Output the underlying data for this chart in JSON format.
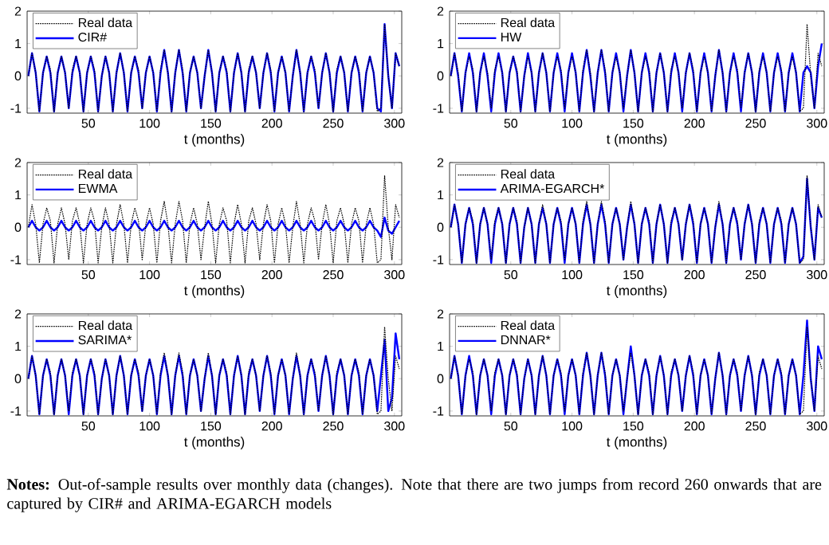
{
  "chart_data": [
    {
      "type": "line",
      "xlabel": "t (months)",
      "xlim": [
        0,
        306
      ],
      "ylim": [
        -1.15,
        2
      ],
      "xticks": [
        50,
        100,
        150,
        200,
        250,
        300
      ],
      "yticks": [
        -1,
        0,
        1,
        2
      ],
      "legend": "top left",
      "x": [
        1,
        4,
        7,
        10,
        13,
        16,
        19,
        22,
        25,
        28,
        31,
        34,
        37,
        40,
        43,
        46,
        49,
        52,
        55,
        58,
        61,
        64,
        67,
        70,
        73,
        76,
        79,
        82,
        85,
        88,
        91,
        94,
        97,
        100,
        103,
        106,
        109,
        112,
        115,
        118,
        121,
        124,
        127,
        130,
        133,
        136,
        139,
        142,
        145,
        148,
        151,
        154,
        157,
        160,
        163,
        166,
        169,
        172,
        175,
        178,
        181,
        184,
        187,
        190,
        193,
        196,
        199,
        202,
        205,
        208,
        211,
        214,
        217,
        220,
        223,
        226,
        229,
        232,
        235,
        238,
        241,
        244,
        247,
        250,
        253,
        256,
        259,
        262,
        265,
        268,
        271,
        274,
        277,
        280,
        283,
        286,
        289,
        292,
        295,
        298,
        301,
        304
      ],
      "series": [
        {
          "name": "Real data",
          "color": "#000000",
          "line_style": "dotted",
          "values": [
            0,
            0.7,
            0.1,
            -1.1,
            0.1,
            0.6,
            0.2,
            -1.1,
            0.1,
            0.6,
            0.1,
            -1.0,
            0.2,
            0.6,
            0.1,
            -1.1,
            0.1,
            0.6,
            0.2,
            -1.1,
            0.0,
            0.6,
            0.1,
            -1.1,
            0.1,
            0.7,
            0.1,
            -1.1,
            0.1,
            0.6,
            0.2,
            -1.0,
            0.1,
            0.6,
            0.1,
            -1.1,
            0.2,
            0.8,
            0.1,
            -1.1,
            0.1,
            0.8,
            0.2,
            -1.1,
            0.1,
            0.6,
            0.1,
            -1.0,
            0.0,
            0.8,
            0.1,
            -1.1,
            0.1,
            0.6,
            0.2,
            -1.1,
            0.1,
            0.7,
            0.1,
            -1.1,
            0.2,
            0.6,
            0.1,
            -1.0,
            0.1,
            0.7,
            0.2,
            -1.1,
            0.1,
            0.6,
            0.1,
            -1.1,
            0.0,
            0.8,
            0.1,
            -1.1,
            0.1,
            0.6,
            0.2,
            -1.0,
            0.1,
            0.7,
            0.1,
            -1.1,
            0.2,
            0.6,
            0.1,
            -1.1,
            0.1,
            0.6,
            0.2,
            -1.1,
            0.1,
            0.6,
            0.1,
            -1.1,
            -1.0,
            1.6,
            0.0,
            -1.0,
            0.7,
            0.3
          ]
        },
        {
          "name": "CIR#",
          "color": "#0000ff",
          "line_style": "solid",
          "values": [
            0,
            0.7,
            0.1,
            -1.1,
            0.1,
            0.6,
            0.1,
            -1.1,
            0.1,
            0.6,
            0.1,
            -1.0,
            0.1,
            0.6,
            0.1,
            -1.1,
            0.1,
            0.6,
            0.1,
            -1.1,
            0.0,
            0.6,
            0.1,
            -1.1,
            0.1,
            0.7,
            0.1,
            -1.1,
            0.1,
            0.6,
            0.1,
            -1.0,
            0.1,
            0.6,
            0.1,
            -1.1,
            0.1,
            0.8,
            0.1,
            -1.1,
            0.1,
            0.8,
            0.1,
            -1.1,
            0.1,
            0.6,
            0.1,
            -1.0,
            0.0,
            0.8,
            0.1,
            -1.1,
            0.1,
            0.6,
            0.1,
            -1.1,
            0.1,
            0.7,
            0.1,
            -1.1,
            0.1,
            0.6,
            0.1,
            -1.0,
            0.1,
            0.7,
            0.1,
            -1.1,
            0.1,
            0.6,
            0.1,
            -1.1,
            0.0,
            0.8,
            0.1,
            -1.1,
            0.1,
            0.6,
            0.1,
            -1.0,
            0.1,
            0.7,
            0.1,
            -1.1,
            0.1,
            0.6,
            0.1,
            -1.1,
            0.1,
            0.6,
            0.1,
            -1.1,
            0.1,
            0.6,
            0.1,
            -1.0,
            -1.1,
            1.6,
            0.0,
            -1.0,
            0.7,
            0.3
          ]
        }
      ],
      "annotations": [
        "**Notes:** Out-of-sample results over monthly data (changes). Note that there are two jumps from record 260 onwards that are captured by CIR# and ARIMA-EGARCH models"
      ]
    },
    {
      "type": "line",
      "xlabel": "t (months)",
      "xlim": [
        0,
        306
      ],
      "ylim": [
        -1.15,
        2
      ],
      "xticks": [
        50,
        100,
        150,
        200,
        250,
        300
      ],
      "yticks": [
        -1,
        0,
        1,
        2
      ],
      "legend": "top left",
      "x": [
        1,
        4,
        7,
        10,
        13,
        16,
        19,
        22,
        25,
        28,
        31,
        34,
        37,
        40,
        43,
        46,
        49,
        52,
        55,
        58,
        61,
        64,
        67,
        70,
        73,
        76,
        79,
        82,
        85,
        88,
        91,
        94,
        97,
        100,
        103,
        106,
        109,
        112,
        115,
        118,
        121,
        124,
        127,
        130,
        133,
        136,
        139,
        142,
        145,
        148,
        151,
        154,
        157,
        160,
        163,
        166,
        169,
        172,
        175,
        178,
        181,
        184,
        187,
        190,
        193,
        196,
        199,
        202,
        205,
        208,
        211,
        214,
        217,
        220,
        223,
        226,
        229,
        232,
        235,
        238,
        241,
        244,
        247,
        250,
        253,
        256,
        259,
        262,
        265,
        268,
        271,
        274,
        277,
        280,
        283,
        286,
        289,
        292,
        295,
        298,
        301,
        304
      ],
      "series": [
        {
          "name": "Real data",
          "color": "#000000",
          "line_style": "dotted",
          "values": [
            0,
            0.7,
            0.1,
            -1.1,
            0.1,
            0.6,
            0.2,
            -1.1,
            0.1,
            0.6,
            0.1,
            -1.0,
            0.2,
            0.6,
            0.1,
            -1.1,
            0.1,
            0.6,
            0.2,
            -1.1,
            0.0,
            0.6,
            0.1,
            -1.1,
            0.1,
            0.7,
            0.1,
            -1.1,
            0.1,
            0.6,
            0.2,
            -1.0,
            0.1,
            0.6,
            0.1,
            -1.1,
            0.2,
            0.8,
            0.1,
            -1.1,
            0.1,
            0.8,
            0.2,
            -1.1,
            0.1,
            0.6,
            0.1,
            -1.0,
            0.0,
            0.8,
            0.1,
            -1.1,
            0.1,
            0.6,
            0.2,
            -1.1,
            0.1,
            0.7,
            0.1,
            -1.1,
            0.2,
            0.6,
            0.1,
            -1.0,
            0.1,
            0.7,
            0.2,
            -1.1,
            0.1,
            0.6,
            0.1,
            -1.1,
            0.0,
            0.8,
            0.1,
            -1.1,
            0.1,
            0.6,
            0.2,
            -1.0,
            0.1,
            0.7,
            0.1,
            -1.1,
            0.2,
            0.6,
            0.1,
            -1.1,
            0.1,
            0.6,
            0.2,
            -1.1,
            0.1,
            0.6,
            0.1,
            -1.1,
            -1.0,
            1.6,
            0.0,
            -1.0,
            0.7,
            0.3
          ]
        },
        {
          "name": "HW",
          "color": "#0000ff",
          "line_style": "solid",
          "values": [
            0,
            0.7,
            0.0,
            -1.1,
            0.1,
            0.7,
            0.1,
            -1.1,
            0.1,
            0.7,
            0.0,
            -1.1,
            0.1,
            0.7,
            0.1,
            -1.1,
            0.1,
            0.6,
            0.1,
            -1.1,
            0.0,
            0.7,
            0.1,
            -1.1,
            0.1,
            0.7,
            0.1,
            -1.1,
            0.1,
            0.7,
            0.1,
            -1.1,
            0.1,
            0.7,
            0.1,
            -1.1,
            0.1,
            0.8,
            0.0,
            -1.1,
            0.1,
            0.8,
            0.1,
            -1.1,
            0.1,
            0.7,
            0.1,
            -1.1,
            0.0,
            0.8,
            0.1,
            -1.1,
            0.1,
            0.7,
            0.1,
            -1.1,
            0.1,
            0.7,
            0.1,
            -1.1,
            0.1,
            0.7,
            0.1,
            -1.1,
            0.1,
            0.7,
            0.1,
            -1.1,
            0.1,
            0.7,
            0.1,
            -1.1,
            0.0,
            0.8,
            0.1,
            -1.1,
            0.1,
            0.7,
            0.1,
            -1.1,
            0.1,
            0.7,
            0.1,
            -1.1,
            0.1,
            0.7,
            0.1,
            -1.1,
            0.1,
            0.7,
            0.1,
            -1.1,
            0.1,
            0.7,
            0.1,
            -1.1,
            0.1,
            0.3,
            0.1,
            -1.0,
            0.3,
            1.0
          ]
        }
      ]
    },
    {
      "type": "line",
      "xlabel": "t (months)",
      "xlim": [
        0,
        306
      ],
      "ylim": [
        -1.15,
        2
      ],
      "xticks": [
        50,
        100,
        150,
        200,
        250,
        300
      ],
      "yticks": [
        -1,
        0,
        1,
        2
      ],
      "legend": "top left",
      "x": [
        1,
        4,
        7,
        10,
        13,
        16,
        19,
        22,
        25,
        28,
        31,
        34,
        37,
        40,
        43,
        46,
        49,
        52,
        55,
        58,
        61,
        64,
        67,
        70,
        73,
        76,
        79,
        82,
        85,
        88,
        91,
        94,
        97,
        100,
        103,
        106,
        109,
        112,
        115,
        118,
        121,
        124,
        127,
        130,
        133,
        136,
        139,
        142,
        145,
        148,
        151,
        154,
        157,
        160,
        163,
        166,
        169,
        172,
        175,
        178,
        181,
        184,
        187,
        190,
        193,
        196,
        199,
        202,
        205,
        208,
        211,
        214,
        217,
        220,
        223,
        226,
        229,
        232,
        235,
        238,
        241,
        244,
        247,
        250,
        253,
        256,
        259,
        262,
        265,
        268,
        271,
        274,
        277,
        280,
        283,
        286,
        289,
        292,
        295,
        298,
        301,
        304
      ],
      "series": [
        {
          "name": "Real data",
          "color": "#000000",
          "line_style": "dotted",
          "values": [
            0,
            0.7,
            0.1,
            -1.1,
            0.1,
            0.6,
            0.2,
            -1.1,
            0.1,
            0.6,
            0.1,
            -1.0,
            0.2,
            0.6,
            0.1,
            -1.1,
            0.1,
            0.6,
            0.2,
            -1.1,
            0.0,
            0.6,
            0.1,
            -1.1,
            0.1,
            0.7,
            0.1,
            -1.1,
            0.1,
            0.6,
            0.2,
            -1.0,
            0.1,
            0.6,
            0.1,
            -1.1,
            0.2,
            0.8,
            0.1,
            -1.1,
            0.1,
            0.8,
            0.2,
            -1.1,
            0.1,
            0.6,
            0.1,
            -1.0,
            0.0,
            0.8,
            0.1,
            -1.1,
            0.1,
            0.6,
            0.2,
            -1.1,
            0.1,
            0.7,
            0.1,
            -1.1,
            0.2,
            0.6,
            0.1,
            -1.0,
            0.1,
            0.7,
            0.2,
            -1.1,
            0.1,
            0.6,
            0.1,
            -1.1,
            0.0,
            0.8,
            0.1,
            -1.1,
            0.1,
            0.6,
            0.2,
            -1.0,
            0.1,
            0.7,
            0.1,
            -1.1,
            0.2,
            0.6,
            0.1,
            -1.1,
            0.1,
            0.6,
            0.2,
            -1.1,
            0.1,
            0.6,
            0.1,
            -1.1,
            -1.0,
            1.6,
            0.0,
            -1.0,
            0.7,
            0.3
          ]
        },
        {
          "name": "EWMA",
          "color": "#0000ff",
          "line_style": "solid",
          "values": [
            0,
            0.2,
            0.0,
            -0.1,
            0.0,
            0.2,
            0.0,
            -0.1,
            0.0,
            0.2,
            0.0,
            -0.1,
            0.0,
            0.2,
            0.0,
            -0.1,
            0.0,
            0.2,
            0.0,
            -0.1,
            0.0,
            0.2,
            0.0,
            -0.1,
            0.0,
            0.2,
            0.0,
            -0.1,
            0.0,
            0.2,
            0.0,
            -0.1,
            0.0,
            0.2,
            0.0,
            -0.1,
            0.0,
            0.2,
            0.0,
            -0.1,
            0.0,
            0.2,
            0.0,
            -0.1,
            0.0,
            0.2,
            0.0,
            -0.1,
            0.0,
            0.2,
            0.0,
            -0.1,
            0.0,
            0.2,
            0.0,
            -0.1,
            0.0,
            0.2,
            0.0,
            -0.1,
            0.0,
            0.2,
            0.0,
            -0.1,
            0.0,
            0.2,
            0.0,
            -0.1,
            0.0,
            0.2,
            0.0,
            -0.1,
            0.0,
            0.2,
            0.0,
            -0.1,
            0.0,
            0.2,
            0.0,
            -0.1,
            0.0,
            0.2,
            0.0,
            -0.1,
            0.0,
            0.2,
            0.0,
            -0.1,
            0.0,
            0.2,
            0.0,
            -0.1,
            0.0,
            0.2,
            0.0,
            -0.1,
            -0.3,
            0.3,
            -0.1,
            -0.2,
            0.0,
            0.2
          ]
        }
      ]
    },
    {
      "type": "line",
      "xlabel": "t (months)",
      "xlim": [
        0,
        306
      ],
      "ylim": [
        -1.15,
        2
      ],
      "xticks": [
        50,
        100,
        150,
        200,
        250,
        300
      ],
      "yticks": [
        -1,
        0,
        1,
        2
      ],
      "legend": "top left",
      "x": [
        1,
        4,
        7,
        10,
        13,
        16,
        19,
        22,
        25,
        28,
        31,
        34,
        37,
        40,
        43,
        46,
        49,
        52,
        55,
        58,
        61,
        64,
        67,
        70,
        73,
        76,
        79,
        82,
        85,
        88,
        91,
        94,
        97,
        100,
        103,
        106,
        109,
        112,
        115,
        118,
        121,
        124,
        127,
        130,
        133,
        136,
        139,
        142,
        145,
        148,
        151,
        154,
        157,
        160,
        163,
        166,
        169,
        172,
        175,
        178,
        181,
        184,
        187,
        190,
        193,
        196,
        199,
        202,
        205,
        208,
        211,
        214,
        217,
        220,
        223,
        226,
        229,
        232,
        235,
        238,
        241,
        244,
        247,
        250,
        253,
        256,
        259,
        262,
        265,
        268,
        271,
        274,
        277,
        280,
        283,
        286,
        289,
        292,
        295,
        298,
        301,
        304
      ],
      "series": [
        {
          "name": "Real data",
          "color": "#000000",
          "line_style": "dotted",
          "values": [
            0,
            0.7,
            0.1,
            -1.1,
            0.1,
            0.6,
            0.2,
            -1.1,
            0.1,
            0.6,
            0.1,
            -1.0,
            0.2,
            0.6,
            0.1,
            -1.1,
            0.1,
            0.6,
            0.2,
            -1.1,
            0.0,
            0.6,
            0.1,
            -1.1,
            0.1,
            0.7,
            0.1,
            -1.1,
            0.1,
            0.6,
            0.2,
            -1.0,
            0.1,
            0.6,
            0.1,
            -1.1,
            0.2,
            0.8,
            0.1,
            -1.1,
            0.1,
            0.8,
            0.2,
            -1.1,
            0.1,
            0.6,
            0.1,
            -1.0,
            0.0,
            0.8,
            0.1,
            -1.1,
            0.1,
            0.6,
            0.2,
            -1.1,
            0.1,
            0.7,
            0.1,
            -1.1,
            0.2,
            0.6,
            0.1,
            -1.0,
            0.1,
            0.7,
            0.2,
            -1.1,
            0.1,
            0.6,
            0.1,
            -1.1,
            0.0,
            0.8,
            0.1,
            -1.1,
            0.1,
            0.6,
            0.2,
            -1.0,
            0.1,
            0.7,
            0.1,
            -1.1,
            0.2,
            0.6,
            0.1,
            -1.1,
            0.1,
            0.6,
            0.2,
            -1.1,
            0.1,
            0.6,
            0.1,
            -1.1,
            -1.0,
            1.6,
            0.0,
            -1.0,
            0.7,
            0.3
          ]
        },
        {
          "name": "ARIMA-EGARCH*",
          "color": "#0000ff",
          "line_style": "solid",
          "values": [
            0,
            0.7,
            0.1,
            -1.1,
            0.1,
            0.6,
            0.1,
            -1.1,
            0.1,
            0.6,
            0.1,
            -1.1,
            0.1,
            0.6,
            0.1,
            -1.1,
            0.1,
            0.6,
            0.1,
            -1.1,
            0.0,
            0.6,
            0.1,
            -1.1,
            0.1,
            0.6,
            0.1,
            -1.1,
            0.1,
            0.6,
            0.1,
            -1.1,
            0.1,
            0.6,
            0.1,
            -1.1,
            0.1,
            0.7,
            0.1,
            -1.1,
            0.1,
            0.7,
            0.1,
            -1.1,
            0.1,
            0.6,
            0.1,
            -1.0,
            0.0,
            0.7,
            0.1,
            -1.1,
            0.1,
            0.6,
            0.1,
            -1.1,
            0.1,
            0.7,
            0.1,
            -1.1,
            0.1,
            0.6,
            0.1,
            -1.0,
            0.1,
            0.7,
            0.1,
            -1.1,
            0.1,
            0.6,
            0.1,
            -1.1,
            0.0,
            0.7,
            0.1,
            -1.1,
            0.1,
            0.6,
            0.1,
            -1.0,
            0.1,
            0.7,
            0.1,
            -1.1,
            0.1,
            0.6,
            0.1,
            -1.1,
            0.1,
            0.6,
            0.1,
            -1.1,
            0.1,
            0.6,
            0.1,
            -1.1,
            -0.9,
            1.5,
            0.0,
            -1.0,
            0.6,
            0.3
          ]
        }
      ]
    },
    {
      "type": "line",
      "xlabel": "t (months)",
      "xlim": [
        0,
        306
      ],
      "ylim": [
        -1.15,
        2
      ],
      "xticks": [
        50,
        100,
        150,
        200,
        250,
        300
      ],
      "yticks": [
        -1,
        0,
        1,
        2
      ],
      "legend": "top left",
      "x": [
        1,
        4,
        7,
        10,
        13,
        16,
        19,
        22,
        25,
        28,
        31,
        34,
        37,
        40,
        43,
        46,
        49,
        52,
        55,
        58,
        61,
        64,
        67,
        70,
        73,
        76,
        79,
        82,
        85,
        88,
        91,
        94,
        97,
        100,
        103,
        106,
        109,
        112,
        115,
        118,
        121,
        124,
        127,
        130,
        133,
        136,
        139,
        142,
        145,
        148,
        151,
        154,
        157,
        160,
        163,
        166,
        169,
        172,
        175,
        178,
        181,
        184,
        187,
        190,
        193,
        196,
        199,
        202,
        205,
        208,
        211,
        214,
        217,
        220,
        223,
        226,
        229,
        232,
        235,
        238,
        241,
        244,
        247,
        250,
        253,
        256,
        259,
        262,
        265,
        268,
        271,
        274,
        277,
        280,
        283,
        286,
        289,
        292,
        295,
        298,
        301,
        304
      ],
      "series": [
        {
          "name": "Real data",
          "color": "#000000",
          "line_style": "dotted",
          "values": [
            0,
            0.7,
            0.1,
            -1.1,
            0.1,
            0.6,
            0.2,
            -1.1,
            0.1,
            0.6,
            0.1,
            -1.0,
            0.2,
            0.6,
            0.1,
            -1.1,
            0.1,
            0.6,
            0.2,
            -1.1,
            0.0,
            0.6,
            0.1,
            -1.1,
            0.1,
            0.7,
            0.1,
            -1.1,
            0.1,
            0.6,
            0.2,
            -1.0,
            0.1,
            0.6,
            0.1,
            -1.1,
            0.2,
            0.8,
            0.1,
            -1.1,
            0.1,
            0.8,
            0.2,
            -1.1,
            0.1,
            0.6,
            0.1,
            -1.0,
            0.0,
            0.8,
            0.1,
            -1.1,
            0.1,
            0.6,
            0.2,
            -1.1,
            0.1,
            0.7,
            0.1,
            -1.1,
            0.2,
            0.6,
            0.1,
            -1.0,
            0.1,
            0.7,
            0.2,
            -1.1,
            0.1,
            0.6,
            0.1,
            -1.1,
            0.0,
            0.8,
            0.1,
            -1.1,
            0.1,
            0.6,
            0.2,
            -1.0,
            0.1,
            0.7,
            0.1,
            -1.1,
            0.2,
            0.6,
            0.1,
            -1.1,
            0.1,
            0.6,
            0.2,
            -1.1,
            0.1,
            0.6,
            0.1,
            -1.1,
            -1.0,
            1.6,
            0.0,
            -1.0,
            0.7,
            0.3
          ]
        },
        {
          "name": "SARIMA*",
          "color": "#0000ff",
          "line_style": "solid",
          "values": [
            0,
            0.7,
            0.1,
            -1.1,
            0.1,
            0.6,
            0.1,
            -1.1,
            0.1,
            0.6,
            0.1,
            -1.1,
            0.1,
            0.6,
            0.1,
            -1.1,
            0.1,
            0.6,
            0.1,
            -1.1,
            0.0,
            0.6,
            0.1,
            -1.1,
            0.1,
            0.7,
            0.1,
            -1.1,
            0.1,
            0.6,
            0.1,
            -1.0,
            0.1,
            0.6,
            0.1,
            -1.1,
            0.1,
            0.7,
            0.1,
            -1.1,
            0.1,
            0.7,
            0.1,
            -1.1,
            0.1,
            0.6,
            0.1,
            -1.0,
            0.0,
            0.7,
            0.1,
            -1.1,
            0.1,
            0.6,
            0.1,
            -1.1,
            0.1,
            0.7,
            0.1,
            -1.1,
            0.1,
            0.6,
            0.1,
            -1.0,
            0.1,
            0.7,
            0.1,
            -1.1,
            0.1,
            0.6,
            0.1,
            -1.1,
            0.0,
            0.7,
            0.1,
            -1.1,
            0.1,
            0.6,
            0.1,
            -1.0,
            0.1,
            0.7,
            0.1,
            -1.1,
            0.1,
            0.6,
            0.1,
            -1.1,
            0.1,
            0.6,
            0.1,
            -1.1,
            0.1,
            0.6,
            0.1,
            -1.0,
            0.1,
            1.2,
            -1.0,
            -0.6,
            1.4,
            0.6
          ]
        }
      ]
    },
    {
      "type": "line",
      "xlabel": "t (months)",
      "xlim": [
        0,
        306
      ],
      "ylim": [
        -1.15,
        2
      ],
      "xticks": [
        50,
        100,
        150,
        200,
        250,
        300
      ],
      "yticks": [
        -1,
        0,
        1,
        2
      ],
      "legend": "top left",
      "x": [
        1,
        4,
        7,
        10,
        13,
        16,
        19,
        22,
        25,
        28,
        31,
        34,
        37,
        40,
        43,
        46,
        49,
        52,
        55,
        58,
        61,
        64,
        67,
        70,
        73,
        76,
        79,
        82,
        85,
        88,
        91,
        94,
        97,
        100,
        103,
        106,
        109,
        112,
        115,
        118,
        121,
        124,
        127,
        130,
        133,
        136,
        139,
        142,
        145,
        148,
        151,
        154,
        157,
        160,
        163,
        166,
        169,
        172,
        175,
        178,
        181,
        184,
        187,
        190,
        193,
        196,
        199,
        202,
        205,
        208,
        211,
        214,
        217,
        220,
        223,
        226,
        229,
        232,
        235,
        238,
        241,
        244,
        247,
        250,
        253,
        256,
        259,
        262,
        265,
        268,
        271,
        274,
        277,
        280,
        283,
        286,
        289,
        292,
        295,
        298,
        301,
        304
      ],
      "series": [
        {
          "name": "Real data",
          "color": "#000000",
          "line_style": "dotted",
          "values": [
            0,
            0.7,
            0.1,
            -1.1,
            0.1,
            0.6,
            0.2,
            -1.1,
            0.1,
            0.6,
            0.1,
            -1.0,
            0.2,
            0.6,
            0.1,
            -1.1,
            0.1,
            0.6,
            0.2,
            -1.1,
            0.0,
            0.6,
            0.1,
            -1.1,
            0.1,
            0.7,
            0.1,
            -1.1,
            0.1,
            0.6,
            0.2,
            -1.0,
            0.1,
            0.6,
            0.1,
            -1.1,
            0.2,
            0.8,
            0.1,
            -1.1,
            0.1,
            0.8,
            0.2,
            -1.1,
            0.1,
            0.6,
            0.1,
            -1.0,
            0.0,
            0.8,
            0.1,
            -1.1,
            0.1,
            0.6,
            0.2,
            -1.1,
            0.1,
            0.7,
            0.1,
            -1.1,
            0.2,
            0.6,
            0.1,
            -1.0,
            0.1,
            0.7,
            0.2,
            -1.1,
            0.1,
            0.6,
            0.1,
            -1.1,
            0.0,
            0.8,
            0.1,
            -1.1,
            0.1,
            0.6,
            0.2,
            -1.0,
            0.1,
            0.7,
            0.1,
            -1.1,
            0.2,
            0.6,
            0.1,
            -1.1,
            0.1,
            0.6,
            0.2,
            -1.1,
            0.1,
            0.6,
            0.1,
            -1.1,
            -1.0,
            1.6,
            0.0,
            -1.0,
            0.7,
            0.3
          ]
        },
        {
          "name": "DNNAR*",
          "color": "#0000ff",
          "line_style": "solid",
          "values": [
            0,
            0.7,
            0.1,
            -1.1,
            0.1,
            0.7,
            0.1,
            -1.1,
            0.1,
            0.6,
            0.1,
            -1.1,
            0.1,
            0.6,
            0.1,
            -1.1,
            0.1,
            0.6,
            0.1,
            -1.1,
            0.0,
            0.6,
            0.1,
            -1.1,
            0.1,
            0.7,
            0.1,
            -1.1,
            0.1,
            0.6,
            0.1,
            -1.1,
            0.1,
            0.6,
            0.1,
            -1.1,
            0.1,
            0.8,
            0.1,
            -1.1,
            0.1,
            0.8,
            0.1,
            -1.1,
            0.1,
            0.6,
            0.1,
            -1.1,
            0.0,
            1.0,
            0.1,
            -1.1,
            0.1,
            0.6,
            0.1,
            -1.1,
            0.1,
            0.7,
            0.1,
            -1.1,
            0.1,
            0.6,
            0.1,
            -1.0,
            0.1,
            0.7,
            0.1,
            -1.1,
            0.1,
            0.6,
            0.1,
            -1.1,
            0.0,
            0.8,
            0.1,
            -1.1,
            0.1,
            0.6,
            0.1,
            -1.0,
            0.1,
            0.7,
            0.1,
            -1.1,
            0.1,
            0.6,
            0.1,
            -1.1,
            0.1,
            0.6,
            0.1,
            -1.1,
            0.1,
            0.6,
            0.1,
            -1.1,
            0.1,
            1.8,
            0.0,
            -1.0,
            1.0,
            0.6
          ]
        }
      ]
    }
  ]
}
